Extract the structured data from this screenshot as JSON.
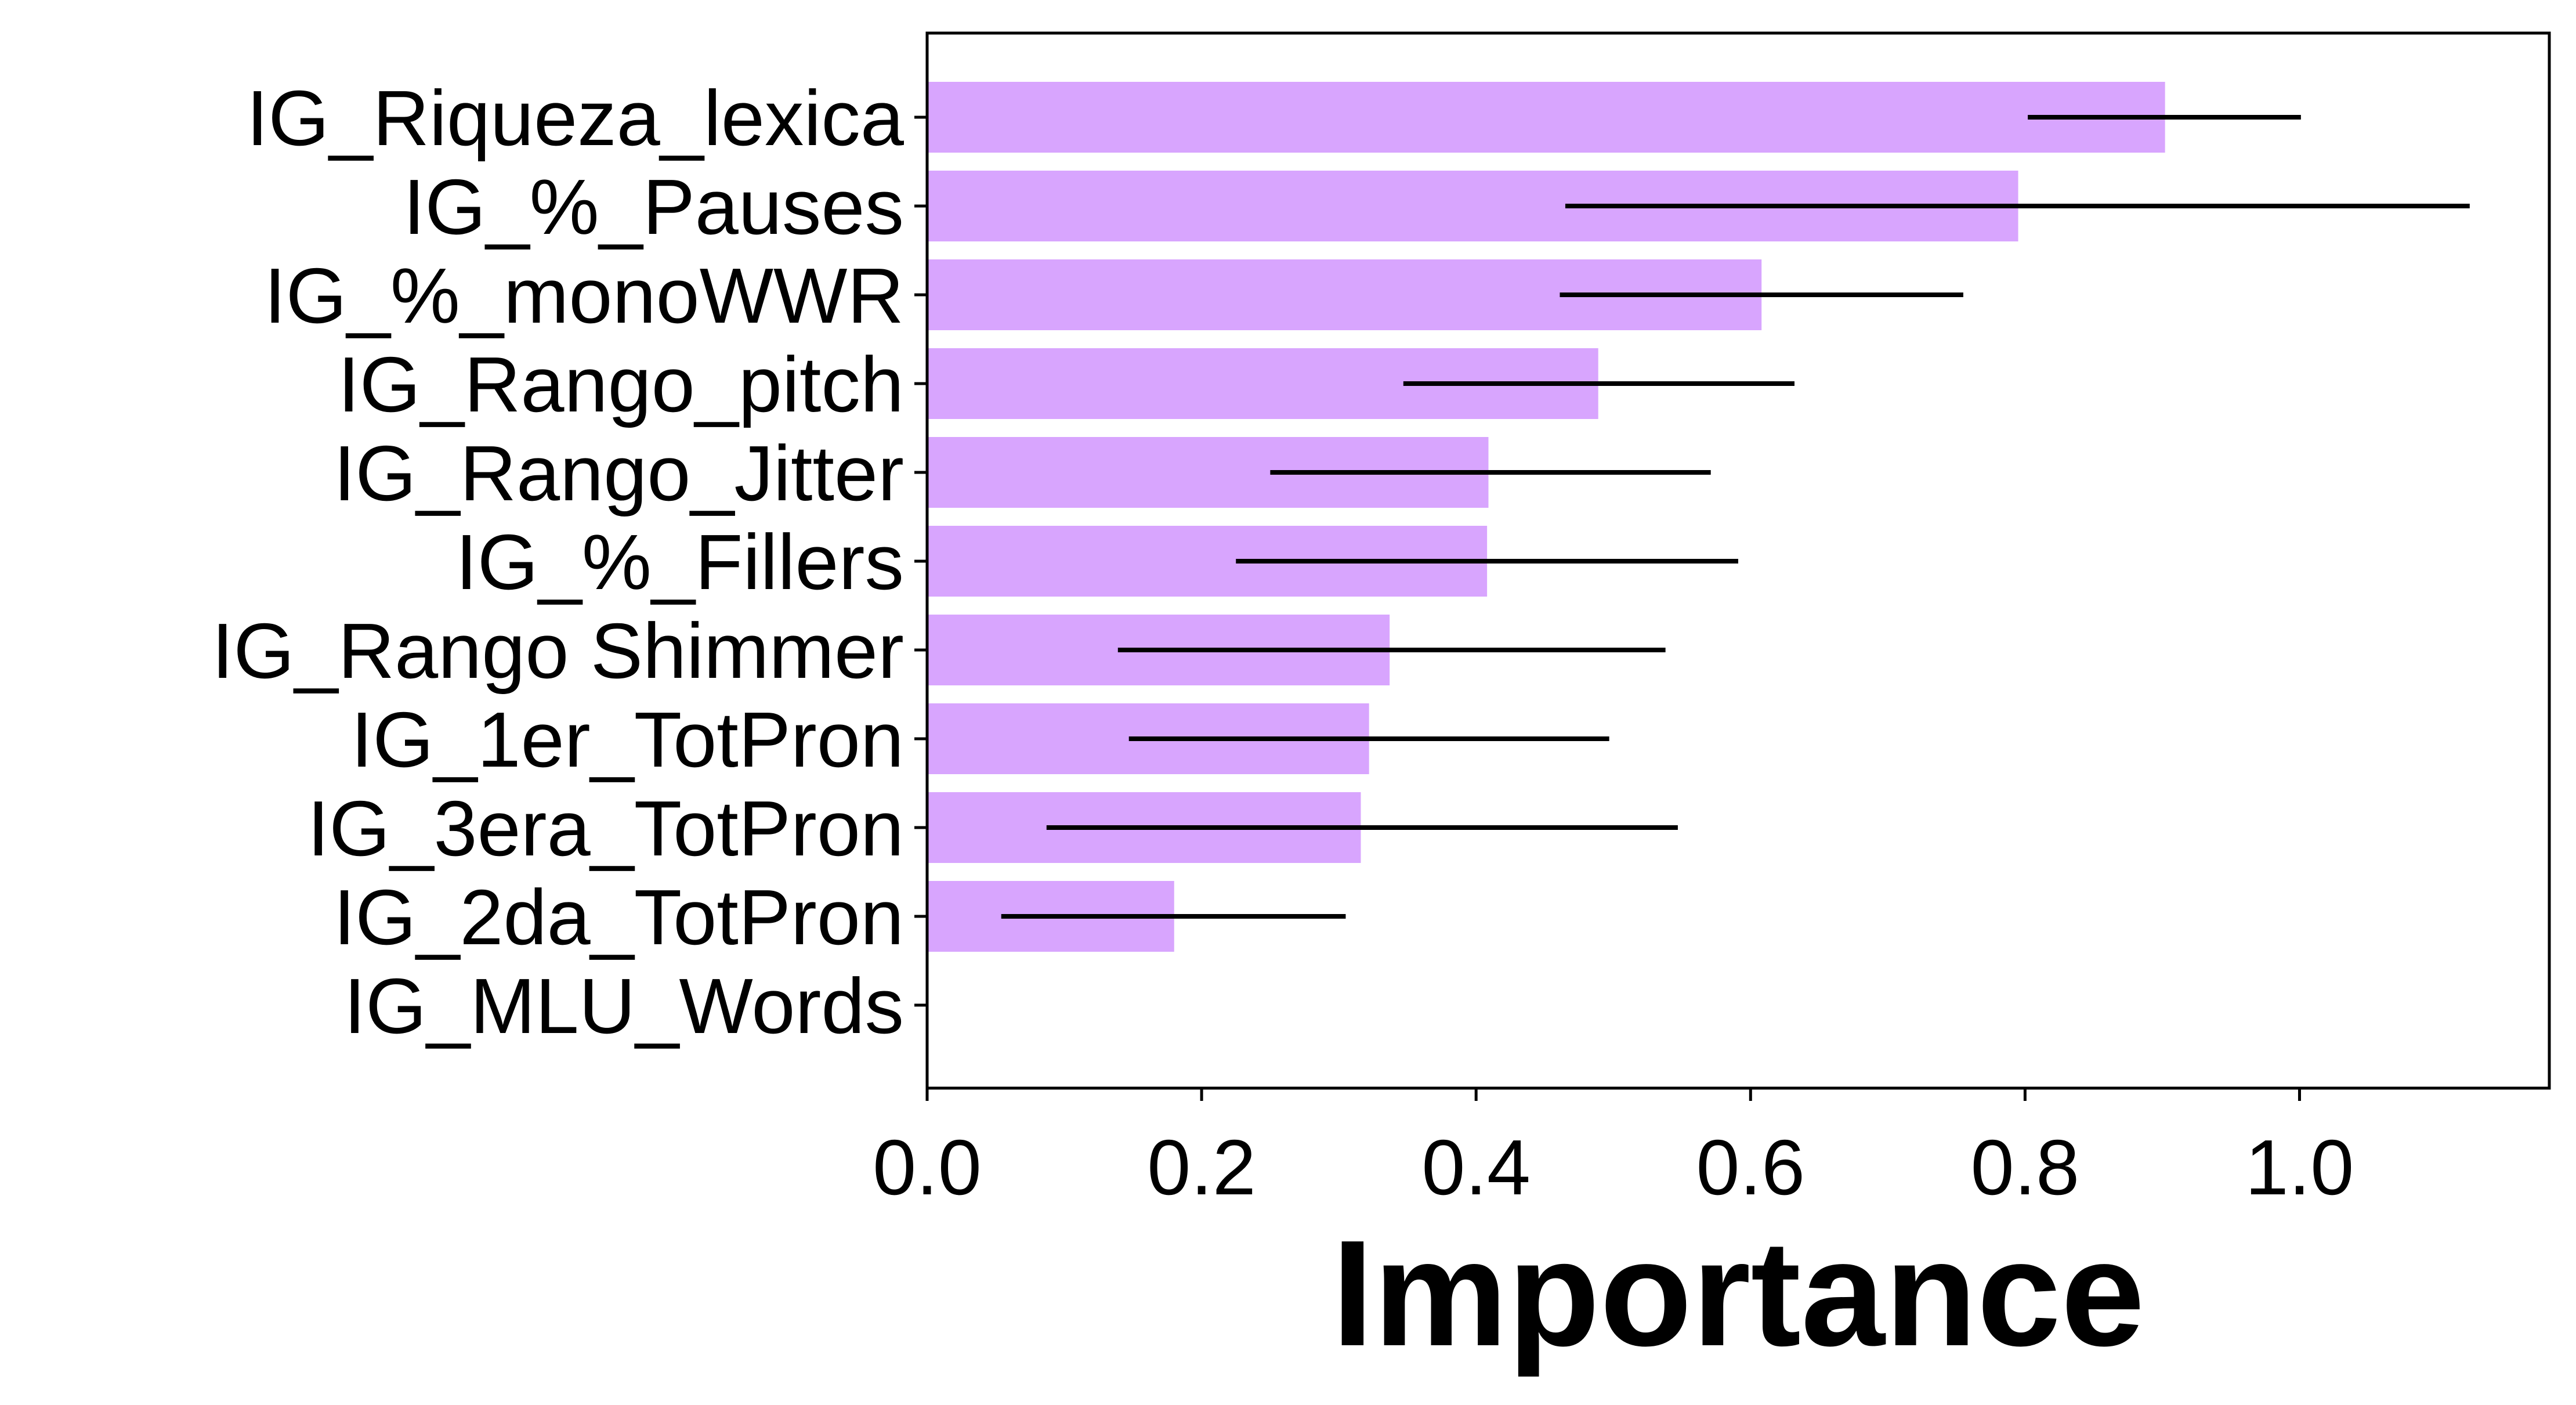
{
  "chart_data": {
    "type": "bar",
    "orientation": "horizontal",
    "categories": [
      "IG_Riqueza_lexica",
      "IG_%_Pauses",
      "IG_%_monoWWR",
      "IG_Rango_pitch",
      "IG_Rango_Jitter",
      "IG_%_Fillers",
      "IG_Rango Shimmer",
      "IG_1er_TotPron",
      "IG_3era_TotPron",
      "IG_2da_TotPron",
      "IG_MLU_Words"
    ],
    "values": [
      0.902,
      0.795,
      0.608,
      0.489,
      0.409,
      0.408,
      0.337,
      0.322,
      0.316,
      0.18,
      0.0
    ],
    "error_low": [
      0.802,
      0.465,
      0.461,
      0.347,
      0.25,
      0.225,
      0.139,
      0.147,
      0.087,
      0.054,
      0.0
    ],
    "error_high": [
      1.001,
      1.124,
      0.755,
      0.632,
      0.571,
      0.591,
      0.538,
      0.497,
      0.547,
      0.305,
      0.0
    ],
    "xlabel": "Importance",
    "ylabel": "",
    "xlim": [
      0.0,
      1.182
    ],
    "xticks": [
      "0.0",
      "0.2",
      "0.4",
      "0.6",
      "0.8",
      "1.0"
    ],
    "grid": false,
    "bar_color": "#d8a5fe",
    "error_color": "#000000"
  }
}
